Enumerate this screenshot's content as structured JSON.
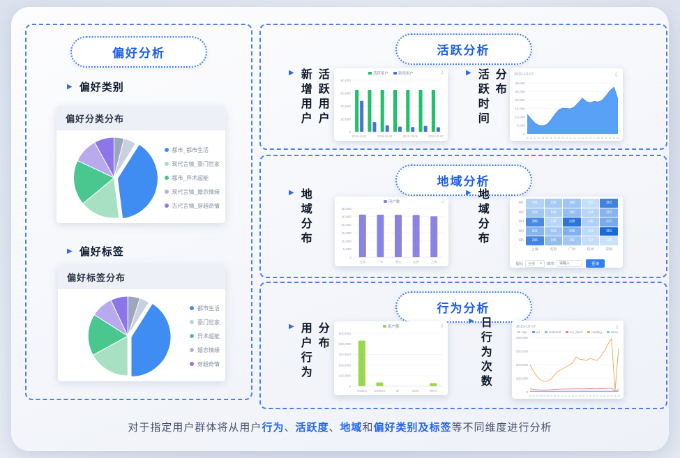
{
  "panels": {
    "preference": {
      "title": "偏好分析",
      "sections": [
        {
          "header": "偏好类别",
          "card_title": "偏好分类分布"
        },
        {
          "header": "偏好标签",
          "card_title": "偏好标签分布"
        }
      ]
    },
    "activity": {
      "title": "活跃分析",
      "left_label_cols": [
        "新增用户",
        "活跃用户"
      ],
      "right_label_cols": [
        "活跃时间",
        "分布"
      ],
      "date_label": "2019-10-07"
    },
    "region": {
      "title": "地域分析",
      "left_label_cols": [
        "地域分布"
      ],
      "right_label_cols": [
        "地域分布"
      ],
      "form": {
        "metric_label": "指标",
        "metric_value": "全部",
        "city_label": "城市",
        "city_placeholder": "请输入",
        "query_label": "查询"
      }
    },
    "behavior": {
      "title": "行为分析",
      "left_label_cols": [
        "用户行为",
        "分布"
      ],
      "right_label_cols": [
        "日行为次数"
      ],
      "date_label": "2019-10-07"
    }
  },
  "icons": {
    "download": "⇩",
    "caret": "▾",
    "bullet": "▶"
  },
  "accent_colors": {
    "dashed_border": "#4d7df2",
    "title_blue": "#1b5ce8",
    "highlight": "#2366ee"
  },
  "footer": {
    "segments": [
      {
        "text": "对于指定用户群体将从用户",
        "highlight": false
      },
      {
        "text": "行为",
        "highlight": true
      },
      {
        "text": "、",
        "highlight": false
      },
      {
        "text": "活跃度",
        "highlight": true
      },
      {
        "text": "、",
        "highlight": false
      },
      {
        "text": "地域",
        "highlight": true
      },
      {
        "text": "和",
        "highlight": false
      },
      {
        "text": "偏好类别及标签",
        "highlight": true
      },
      {
        "text": "等不同维度进行分析",
        "highlight": false
      }
    ]
  },
  "chart_data": [
    {
      "id": "pie_category",
      "type": "pie",
      "title": "偏好分类分布",
      "slices": [
        {
          "color": "#9aa7bd",
          "value": 4
        },
        {
          "color": "#c9d1e0",
          "value": 5
        },
        {
          "color": "#3f8cf3",
          "value": 39,
          "explode": true
        },
        {
          "color": "#a7e0c3",
          "value": 16
        },
        {
          "color": "#49c78e",
          "value": 18
        },
        {
          "color": "#b9aaf0",
          "value": 10
        },
        {
          "color": "#8d76ea",
          "value": 8
        }
      ],
      "legend": [
        {
          "label": "都市_都市生活",
          "color": "#3f8cf3"
        },
        {
          "label": "现代言情_豪门世家",
          "color": "#a7e0c3"
        },
        {
          "label": "都市_异术超能",
          "color": "#49c78e"
        },
        {
          "label": "现代言情_婚恋情缘",
          "color": "#b9aaf0"
        },
        {
          "label": "古代言情_穿越奇情",
          "color": "#8d76ea"
        }
      ]
    },
    {
      "id": "pie_tag",
      "type": "pie",
      "title": "偏好标签分布",
      "slices": [
        {
          "color": "#9aa7bd",
          "value": 5
        },
        {
          "color": "#c9d1e0",
          "value": 4
        },
        {
          "color": "#3f8cf3",
          "value": 41,
          "explode": true
        },
        {
          "color": "#a7e0c3",
          "value": 17
        },
        {
          "color": "#49c78e",
          "value": 17
        },
        {
          "color": "#b9aaf0",
          "value": 9
        },
        {
          "color": "#8d76ea",
          "value": 7
        }
      ],
      "legend": [
        {
          "label": "都市生活",
          "color": "#3f8cf3"
        },
        {
          "label": "豪门世家",
          "color": "#a7e0c3"
        },
        {
          "label": "异术超能",
          "color": "#49c78e"
        },
        {
          "label": "婚恋情缘",
          "color": "#b9aaf0"
        },
        {
          "label": "穿越奇情",
          "color": "#8d76ea"
        }
      ]
    },
    {
      "id": "bars_activity",
      "type": "bar",
      "categories": [
        "2019-10-01",
        "2019-10-02",
        "2019-10-03",
        "2019-10-04",
        "2019-10-05",
        "2019-10-06",
        "2019-10-07"
      ],
      "series": [
        {
          "name": "活跃用户",
          "color": "#1ec06a",
          "values": [
            65000,
            65000,
            65000,
            65000,
            65000,
            65000,
            65000
          ]
        },
        {
          "name": "新增用户",
          "color": "#4a6fdc",
          "values": [
            48000,
            15000,
            10000,
            8000,
            7500,
            9000,
            7000
          ]
        }
      ],
      "yticks": [
        0,
        20000,
        40000,
        60000,
        80000
      ],
      "xtick_every": 2
    },
    {
      "id": "area_time",
      "type": "area",
      "color": "#4f9cf5",
      "x": [
        "00",
        "01",
        "02",
        "03",
        "04",
        "05",
        "06",
        "07",
        "08",
        "09",
        "10",
        "11",
        "12",
        "13",
        "14",
        "15",
        "16",
        "17",
        "18",
        "19",
        "20",
        "21",
        "22",
        "23"
      ],
      "values": [
        11500,
        8800,
        6200,
        5000,
        4800,
        5600,
        8200,
        11500,
        14200,
        15200,
        15000,
        14800,
        16000,
        18500,
        21000,
        19000,
        18400,
        19200,
        18800,
        19800,
        22500,
        25500,
        27500,
        20500
      ],
      "yticks": [
        0,
        5000,
        10000,
        15000,
        20000,
        25000,
        30000
      ]
    },
    {
      "id": "bars_region",
      "type": "bar",
      "categories": [
        "江苏",
        "广东",
        "浙江",
        "山东",
        "上海"
      ],
      "series": [
        {
          "name": "用户数",
          "color": "#8b83e3",
          "values": [
            26200,
            26150,
            26100,
            26000,
            25200
          ]
        }
      ],
      "yticks": [
        0,
        5000,
        10000,
        15000,
        20000,
        25000,
        30000
      ],
      "xtick_every": 1
    },
    {
      "id": "heat_region",
      "type": "heatmap",
      "rows": [
        "W1",
        "W2",
        "W3",
        "W4",
        "W5"
      ],
      "cols": [
        "上海",
        "北京",
        "广州",
        "杭州",
        "深圳"
      ],
      "values": [
        [
          141,
          156,
          166,
          115,
          301
        ],
        [
          164,
          146,
          182,
          134,
          201
        ],
        [
          286,
          132,
          328,
          146,
          221
        ],
        [
          201,
          163,
          208,
          124,
          351
        ],
        [
          296,
          185,
          162,
          117,
          108
        ]
      ]
    },
    {
      "id": "bars_behavior",
      "type": "bar",
      "categories": [
        "reading",
        "sessions",
        "url",
        "store",
        "others"
      ],
      "series": [
        {
          "name": "用户量",
          "color": "#97d94c",
          "values": [
            430000,
            35000,
            0,
            0,
            28000
          ]
        }
      ],
      "yticks": [
        0,
        100000,
        200000,
        300000,
        400000,
        500000
      ],
      "xtick_every": 1
    },
    {
      "id": "line_behavior",
      "type": "line",
      "x": [
        "01",
        "02",
        "03",
        "04",
        "05",
        "06",
        "07",
        "08",
        "09",
        "10",
        "11",
        "12",
        "13",
        "14",
        "15",
        "16",
        "17",
        "18",
        "19",
        "20",
        "21",
        "22",
        "23",
        "24",
        "25",
        "26"
      ],
      "series": [
        {
          "name": "reading",
          "color": "#f5a04d",
          "values": [
            200000,
            150000,
            110000,
            85000,
            76000,
            80000,
            95000,
            130000,
            152000,
            166000,
            180000,
            196000,
            212000,
            256000,
            240000,
            236000,
            231000,
            246000,
            236000,
            231000,
            262000,
            300000,
            352000,
            390000,
            8000,
            320000
          ]
        },
        {
          "name": "my_shelf",
          "color": "#e5808d",
          "values": [
            22000,
            18000,
            15000,
            14000,
            13000,
            14000,
            16000,
            18000,
            19000,
            20000,
            20000,
            21000,
            21000,
            22000,
            22000,
            21000,
            22000,
            23000,
            22000,
            22000,
            23000,
            24000,
            25000,
            26000,
            4000,
            20000
          ]
        },
        {
          "name": "url",
          "color": "#5b8ff9",
          "values": [
            4000,
            4000,
            4000,
            4000,
            4000,
            4000,
            4000,
            4000,
            4000,
            4000,
            4000,
            4000,
            4000,
            4000,
            4000,
            4000,
            4000,
            4000,
            4000,
            4000,
            4000,
            4000,
            4000,
            4000,
            4000,
            4000
          ]
        }
      ],
      "legend": [
        {
          "label": "sign",
          "color": "#c9ced9"
        },
        {
          "label": "url",
          "color": "#5b8ff9"
        },
        {
          "label": "addshelf",
          "color": "#5ad8a6"
        },
        {
          "label": "my_shelf",
          "color": "#e5808d"
        },
        {
          "label": "reading",
          "color": "#f5a04d"
        },
        {
          "label": "listen",
          "color": "#6dc8ec"
        }
      ],
      "yticks": [
        0,
        100000,
        200000,
        300000,
        400000
      ]
    }
  ]
}
